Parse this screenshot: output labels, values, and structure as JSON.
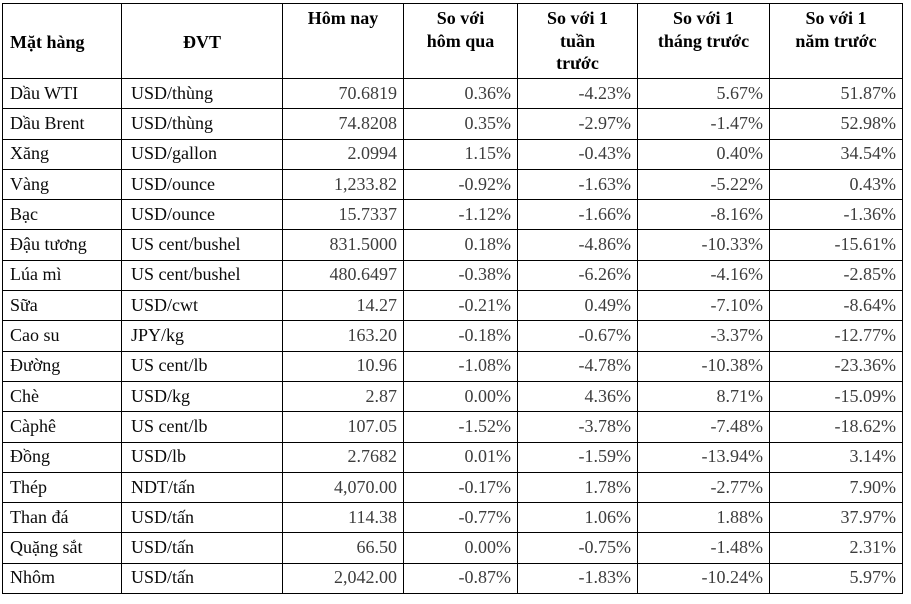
{
  "colors": {
    "background": "#ffffff",
    "border": "#000000",
    "header_text": "#000000",
    "label_text": "#0a0a0a",
    "numeric_text": "#3d3d3d"
  },
  "table": {
    "column_keys": [
      "commodity",
      "unit",
      "today",
      "vs-yesterday",
      "vs-last-week",
      "vs-last-month",
      "vs-last-year"
    ],
    "columns": [
      {
        "label": "Mặt hàng"
      },
      {
        "label": "ĐVT"
      },
      {
        "label": "Hôm nay"
      },
      {
        "label": "So với\nhôm qua"
      },
      {
        "label": "So với 1\ntuần\ntrước"
      },
      {
        "label": "So với 1\ntháng trước"
      },
      {
        "label": "So với 1\nnăm trước"
      }
    ],
    "rows": [
      [
        "Dầu WTI",
        "USD/thùng",
        "70.6819",
        "0.36%",
        "-4.23%",
        "5.67%",
        "51.87%"
      ],
      [
        "Dầu Brent",
        "USD/thùng",
        "74.8208",
        "0.35%",
        "-2.97%",
        "-1.47%",
        "52.98%"
      ],
      [
        "Xăng",
        "USD/gallon",
        "2.0994",
        "1.15%",
        "-0.43%",
        "0.40%",
        "34.54%"
      ],
      [
        "Vàng",
        "USD/ounce",
        "1,233.82",
        "-0.92%",
        "-1.63%",
        "-5.22%",
        "0.43%"
      ],
      [
        "Bạc",
        "USD/ounce",
        "15.7337",
        "-1.12%",
        "-1.66%",
        "-8.16%",
        "-1.36%"
      ],
      [
        "Đậu tương",
        "US cent/bushel",
        "831.5000",
        "0.18%",
        "-4.86%",
        "-10.33%",
        "-15.61%"
      ],
      [
        "Lúa mì",
        "US cent/bushel",
        "480.6497",
        "-0.38%",
        "-6.26%",
        "-4.16%",
        "-2.85%"
      ],
      [
        "Sữa",
        "USD/cwt",
        "14.27",
        "-0.21%",
        "0.49%",
        "-7.10%",
        "-8.64%"
      ],
      [
        "Cao su",
        "JPY/kg",
        "163.20",
        "-0.18%",
        "-0.67%",
        "-3.37%",
        "-12.77%"
      ],
      [
        "Đường",
        "US cent/lb",
        "10.96",
        "-1.08%",
        "-4.78%",
        "-10.38%",
        "-23.36%"
      ],
      [
        "Chè",
        "USD/kg",
        "2.87",
        "0.00%",
        "4.36%",
        "8.71%",
        "-15.09%"
      ],
      [
        "Càphê",
        "US cent/lb",
        "107.05",
        "-1.52%",
        "-3.78%",
        "-7.48%",
        "-18.62%"
      ],
      [
        "Đồng",
        "USD/lb",
        "2.7682",
        "0.01%",
        "-1.59%",
        "-13.94%",
        "3.14%"
      ],
      [
        "Thép",
        "NDT/tấn",
        "4,070.00",
        "-0.17%",
        "1.78%",
        "-2.77%",
        "7.90%"
      ],
      [
        "Than đá",
        "USD/tấn",
        "114.38",
        "-0.77%",
        "1.06%",
        "1.88%",
        "37.97%"
      ],
      [
        "Quặng sắt",
        "USD/tấn",
        "66.50",
        "0.00%",
        "-0.75%",
        "-1.48%",
        "2.31%"
      ],
      [
        "Nhôm",
        "USD/tấn",
        "2,042.00",
        "-0.87%",
        "-1.83%",
        "-10.24%",
        "5.97%"
      ]
    ]
  }
}
